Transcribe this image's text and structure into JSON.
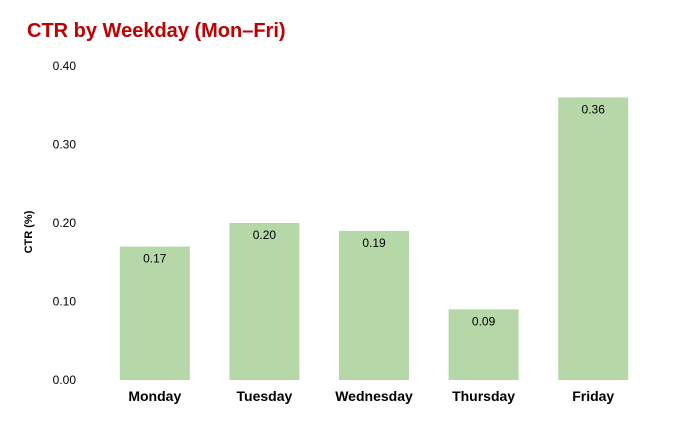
{
  "chart_data": {
    "type": "bar",
    "title": "CTR by Weekday (Mon–Fri)",
    "xlabel": "",
    "ylabel": "CTR (%)",
    "categories": [
      "Monday",
      "Tuesday",
      "Wednesday",
      "Thursday",
      "Friday"
    ],
    "values": [
      0.17,
      0.2,
      0.19,
      0.09,
      0.36
    ],
    "value_labels": [
      "0.17",
      "0.20",
      "0.19",
      "0.09",
      "0.36"
    ],
    "ylim": [
      0,
      0.4
    ],
    "yticks": [
      0.0,
      0.1,
      0.2,
      0.3,
      0.4
    ],
    "ytick_labels": [
      "0.00",
      "0.10",
      "0.20",
      "0.30",
      "0.40"
    ],
    "grid": false,
    "legend": "none",
    "colors": {
      "bar": "#b6d7a8",
      "title": "#c00000"
    }
  }
}
